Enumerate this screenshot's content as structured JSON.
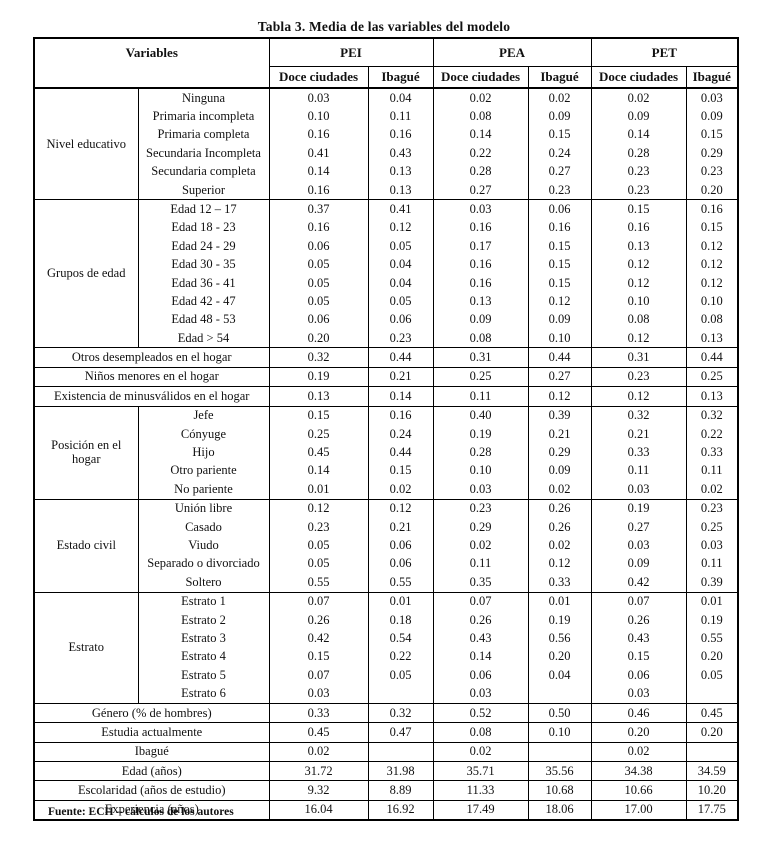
{
  "title": "Tabla 3. Media de las variables del modelo",
  "footer": "Fuente: ECH – cálculos de los autores",
  "header": {
    "variables_label": "Variables",
    "groups": [
      "PEI",
      "PEA",
      "PET"
    ],
    "subcolumns": [
      "Doce ciudades",
      "Ibagué"
    ]
  },
  "sections": [
    {
      "group": "Nivel educativo",
      "rows": [
        {
          "label": "Ninguna",
          "values": [
            "0.03",
            "0.04",
            "0.02",
            "0.02",
            "0.02",
            "0.03"
          ]
        },
        {
          "label": "Primaria incompleta",
          "values": [
            "0.10",
            "0.11",
            "0.08",
            "0.09",
            "0.09",
            "0.09"
          ]
        },
        {
          "label": "Primaria completa",
          "values": [
            "0.16",
            "0.16",
            "0.14",
            "0.15",
            "0.14",
            "0.15"
          ]
        },
        {
          "label": "Secundaria Incompleta",
          "values": [
            "0.41",
            "0.43",
            "0.22",
            "0.24",
            "0.28",
            "0.29"
          ]
        },
        {
          "label": "Secundaria completa",
          "values": [
            "0.14",
            "0.13",
            "0.28",
            "0.27",
            "0.23",
            "0.23"
          ]
        },
        {
          "label": "Superior",
          "values": [
            "0.16",
            "0.13",
            "0.27",
            "0.23",
            "0.23",
            "0.20"
          ]
        }
      ]
    },
    {
      "group": "Grupos de edad",
      "rows": [
        {
          "label": "Edad 12 – 17",
          "values": [
            "0.37",
            "0.41",
            "0.03",
            "0.06",
            "0.15",
            "0.16"
          ]
        },
        {
          "label": "Edad 18 - 23",
          "values": [
            "0.16",
            "0.12",
            "0.16",
            "0.16",
            "0.16",
            "0.15"
          ]
        },
        {
          "label": "Edad 24 - 29",
          "values": [
            "0.06",
            "0.05",
            "0.17",
            "0.15",
            "0.13",
            "0.12"
          ]
        },
        {
          "label": "Edad 30 - 35",
          "values": [
            "0.05",
            "0.04",
            "0.16",
            "0.15",
            "0.12",
            "0.12"
          ]
        },
        {
          "label": "Edad 36 - 41",
          "values": [
            "0.05",
            "0.04",
            "0.16",
            "0.15",
            "0.12",
            "0.12"
          ]
        },
        {
          "label": "Edad 42 - 47",
          "values": [
            "0.05",
            "0.05",
            "0.13",
            "0.12",
            "0.10",
            "0.10"
          ]
        },
        {
          "label": "Edad 48 - 53",
          "values": [
            "0.06",
            "0.06",
            "0.09",
            "0.09",
            "0.08",
            "0.08"
          ]
        },
        {
          "label": "Edad > 54",
          "values": [
            "0.20",
            "0.23",
            "0.08",
            "0.10",
            "0.12",
            "0.13"
          ]
        }
      ]
    },
    {
      "group": null,
      "rows": [
        {
          "label": "Otros desempleados en el hogar",
          "values": [
            "0.32",
            "0.44",
            "0.31",
            "0.44",
            "0.31",
            "0.44"
          ]
        }
      ]
    },
    {
      "group": null,
      "rows": [
        {
          "label": "Niños menores en el hogar",
          "values": [
            "0.19",
            "0.21",
            "0.25",
            "0.27",
            "0.23",
            "0.25"
          ]
        }
      ]
    },
    {
      "group": null,
      "rows": [
        {
          "label": "Existencia de minusválidos en el hogar",
          "values": [
            "0.13",
            "0.14",
            "0.11",
            "0.12",
            "0.12",
            "0.13"
          ]
        }
      ]
    },
    {
      "group": "Posición en el hogar",
      "rows": [
        {
          "label": "Jefe",
          "values": [
            "0.15",
            "0.16",
            "0.40",
            "0.39",
            "0.32",
            "0.32"
          ]
        },
        {
          "label": "Cónyuge",
          "values": [
            "0.25",
            "0.24",
            "0.19",
            "0.21",
            "0.21",
            "0.22"
          ]
        },
        {
          "label": "Hijo",
          "values": [
            "0.45",
            "0.44",
            "0.28",
            "0.29",
            "0.33",
            "0.33"
          ]
        },
        {
          "label": "Otro pariente",
          "values": [
            "0.14",
            "0.15",
            "0.10",
            "0.09",
            "0.11",
            "0.11"
          ]
        },
        {
          "label": "No pariente",
          "values": [
            "0.01",
            "0.02",
            "0.03",
            "0.02",
            "0.03",
            "0.02"
          ]
        }
      ]
    },
    {
      "group": "Estado civil",
      "rows": [
        {
          "label": "Unión libre",
          "values": [
            "0.12",
            "0.12",
            "0.23",
            "0.26",
            "0.19",
            "0.23"
          ]
        },
        {
          "label": "Casado",
          "values": [
            "0.23",
            "0.21",
            "0.29",
            "0.26",
            "0.27",
            "0.25"
          ]
        },
        {
          "label": "Viudo",
          "values": [
            "0.05",
            "0.06",
            "0.02",
            "0.02",
            "0.03",
            "0.03"
          ]
        },
        {
          "label": "Separado o divorciado",
          "values": [
            "0.05",
            "0.06",
            "0.11",
            "0.12",
            "0.09",
            "0.11"
          ]
        },
        {
          "label": "Soltero",
          "values": [
            "0.55",
            "0.55",
            "0.35",
            "0.33",
            "0.42",
            "0.39"
          ]
        }
      ]
    },
    {
      "group": "Estrato",
      "rows": [
        {
          "label": "Estrato 1",
          "values": [
            "0.07",
            "0.01",
            "0.07",
            "0.01",
            "0.07",
            "0.01"
          ]
        },
        {
          "label": "Estrato 2",
          "values": [
            "0.26",
            "0.18",
            "0.26",
            "0.19",
            "0.26",
            "0.19"
          ]
        },
        {
          "label": "Estrato 3",
          "values": [
            "0.42",
            "0.54",
            "0.43",
            "0.56",
            "0.43",
            "0.55"
          ]
        },
        {
          "label": "Estrato 4",
          "values": [
            "0.15",
            "0.22",
            "0.14",
            "0.20",
            "0.15",
            "0.20"
          ]
        },
        {
          "label": "Estrato 5",
          "values": [
            "0.07",
            "0.05",
            "0.06",
            "0.04",
            "0.06",
            "0.05"
          ]
        },
        {
          "label": "Estrato 6",
          "values": [
            "0.03",
            "",
            "0.03",
            "",
            "0.03",
            ""
          ]
        }
      ]
    },
    {
      "group": null,
      "rows": [
        {
          "label": "Género (% de hombres)",
          "values": [
            "0.33",
            "0.32",
            "0.52",
            "0.50",
            "0.46",
            "0.45"
          ]
        }
      ]
    },
    {
      "group": null,
      "rows": [
        {
          "label": "Estudia actualmente",
          "values": [
            "0.45",
            "0.47",
            "0.08",
            "0.10",
            "0.20",
            "0.20"
          ]
        }
      ]
    },
    {
      "group": null,
      "rows": [
        {
          "label": "Ibagué",
          "values": [
            "0.02",
            "",
            "0.02",
            "",
            "0.02",
            ""
          ]
        }
      ]
    },
    {
      "group": null,
      "rows": [
        {
          "label": "Edad (años)",
          "values": [
            "31.72",
            "31.98",
            "35.71",
            "35.56",
            "34.38",
            "34.59"
          ]
        }
      ]
    },
    {
      "group": null,
      "rows": [
        {
          "label": "Escolaridad (años de estudio)",
          "values": [
            "9.32",
            "8.89",
            "11.33",
            "10.68",
            "10.66",
            "10.20"
          ]
        }
      ]
    },
    {
      "group": null,
      "rows": [
        {
          "label": "Experiencia (años)",
          "values": [
            "16.04",
            "16.92",
            "17.49",
            "18.06",
            "17.00",
            "17.75"
          ]
        }
      ]
    }
  ],
  "colors": {
    "page_background": "#ffffff",
    "text": "#111111",
    "border": "#000000"
  }
}
